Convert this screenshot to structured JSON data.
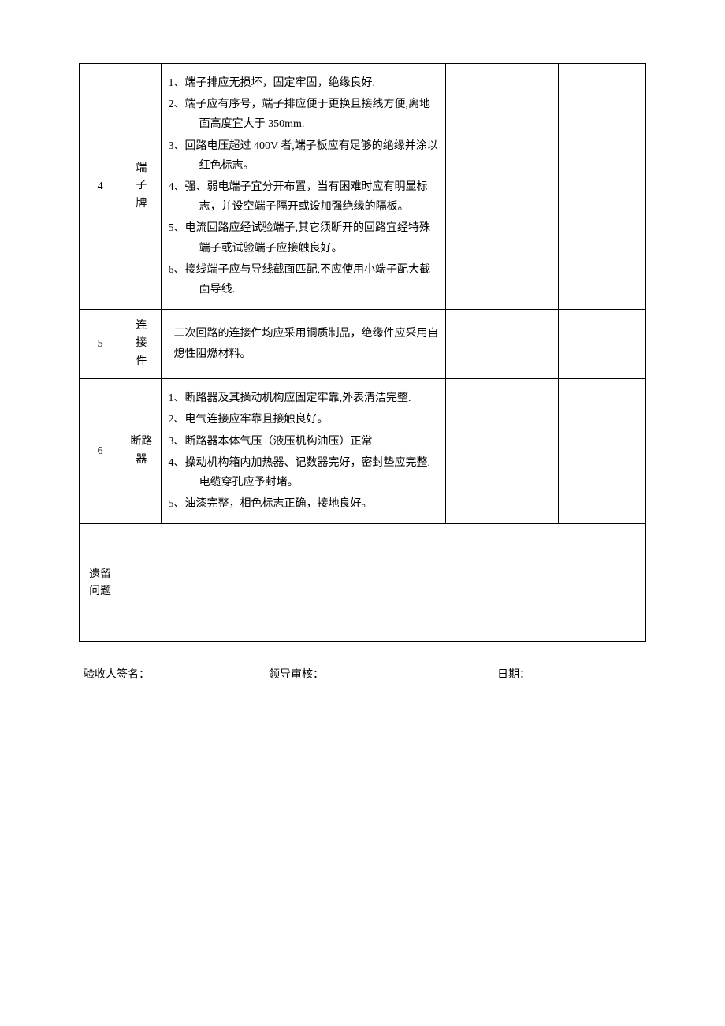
{
  "table": {
    "border_color": "#000000",
    "background_color": "#ffffff",
    "text_color": "#000000",
    "font_family": "SimSun",
    "base_fontsize": 14,
    "line_height": 1.8,
    "columns": {
      "num_width": 52,
      "category_width": 50,
      "content_width": 352,
      "blank1_width": 140,
      "blank2_width": 108
    },
    "rows": [
      {
        "num": "4",
        "category": "端子牌",
        "items": [
          "1、端子排应无损坏，固定牢固，绝缘良好.",
          "2、端子应有序号，端子排应便于更换且接线方便,离地面高度宜大于 350mm.",
          "3、回路电压超过 400V 者,端子板应有足够的绝缘并涂以红色标志。",
          "4、强、弱电端子宜分开布置，当有困难时应有明显标志，并设空端子隔开或设加强绝缘的隔板。",
          "5、电流回路应经试验端子,其它须断开的回路宜经特殊端子或试验端子应接触良好。",
          "6、接线端子应与导线截面匹配,不应使用小端子配大截面导线."
        ]
      },
      {
        "num": "5",
        "category": "连接件",
        "content_single": "二次回路的连接件均应采用铜质制品，绝缘件应采用自熄性阻燃材料。"
      },
      {
        "num": "6",
        "category": "断路器",
        "items": [
          "1、断路器及其操动机构应固定牢靠,外表清洁完整.",
          "2、电气连接应牢靠且接触良好。",
          "3、断路器本体气压（液压机构油压）正常",
          "4、操动机构箱内加热器、记数器完好，密封垫应完整,电缆穿孔应予封堵。",
          "5、油漆完整，相色标志正确，接地良好。"
        ]
      }
    ],
    "remaining_label": "遗留问题"
  },
  "signatures": {
    "inspector": "验收人签名：",
    "leader": "领导审核：",
    "date": "日期："
  }
}
